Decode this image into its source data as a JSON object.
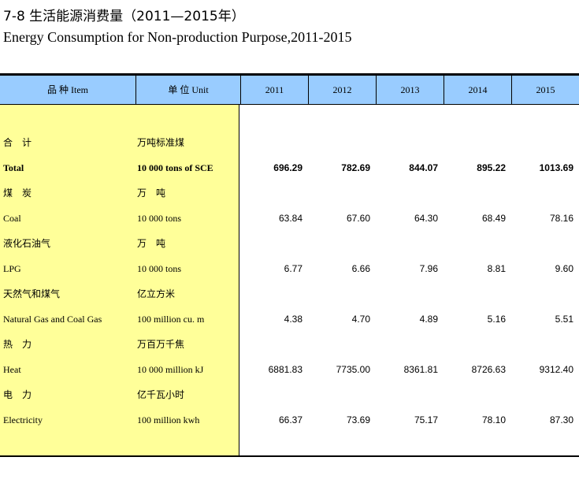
{
  "title_cn": "7-8   生活能源消费量（2011—2015年）",
  "title_en": "Energy Consumption for Non-production Purpose,2011-2015",
  "headers": {
    "item": "品 种 Item",
    "unit": "单 位  Unit",
    "years": [
      "2011",
      "2012",
      "2013",
      "2014",
      "2015"
    ]
  },
  "rows": [
    {
      "cn_item": "合　计",
      "cn_unit": "万吨标准煤",
      "en_item": "Total",
      "en_unit": "10 000 tons of SCE",
      "values": [
        "696.29",
        "782.69",
        "844.07",
        "895.22",
        "1013.69"
      ],
      "bold": true
    },
    {
      "cn_item": "煤　炭",
      "cn_unit": "万　吨",
      "en_item": "Coal",
      "en_unit": "10 000 tons",
      "values": [
        "63.84",
        "67.60",
        "64.30",
        "68.49",
        "78.16"
      ],
      "bold": false
    },
    {
      "cn_item": "液化石油气",
      "cn_unit": "万　吨",
      "en_item": "LPG",
      "en_unit": "10 000 tons",
      "values": [
        "6.77",
        "6.66",
        "7.96",
        "8.81",
        "9.60"
      ],
      "bold": false
    },
    {
      "cn_item": "天然气和煤气",
      "cn_unit": "亿立方米",
      "en_item": "Natural Gas and Coal Gas",
      "en_unit": "100 million cu. m",
      "values": [
        "4.38",
        "4.70",
        "4.89",
        "5.16",
        "5.51"
      ],
      "bold": false
    },
    {
      "cn_item": "热　力",
      "cn_unit": "万百万千焦",
      "en_item": "Heat",
      "en_unit": "10 000 million kJ",
      "values": [
        "6881.83",
        "7735.00",
        "8361.81",
        "8726.63",
        "9312.40"
      ],
      "bold": false
    },
    {
      "cn_item": "电　力",
      "cn_unit": "亿千瓦小时",
      "en_item": "Electricity",
      "en_unit": "100 million kwh",
      "values": [
        "66.37",
        "73.69",
        "75.17",
        "78.10",
        "87.30"
      ],
      "bold": false
    }
  ]
}
